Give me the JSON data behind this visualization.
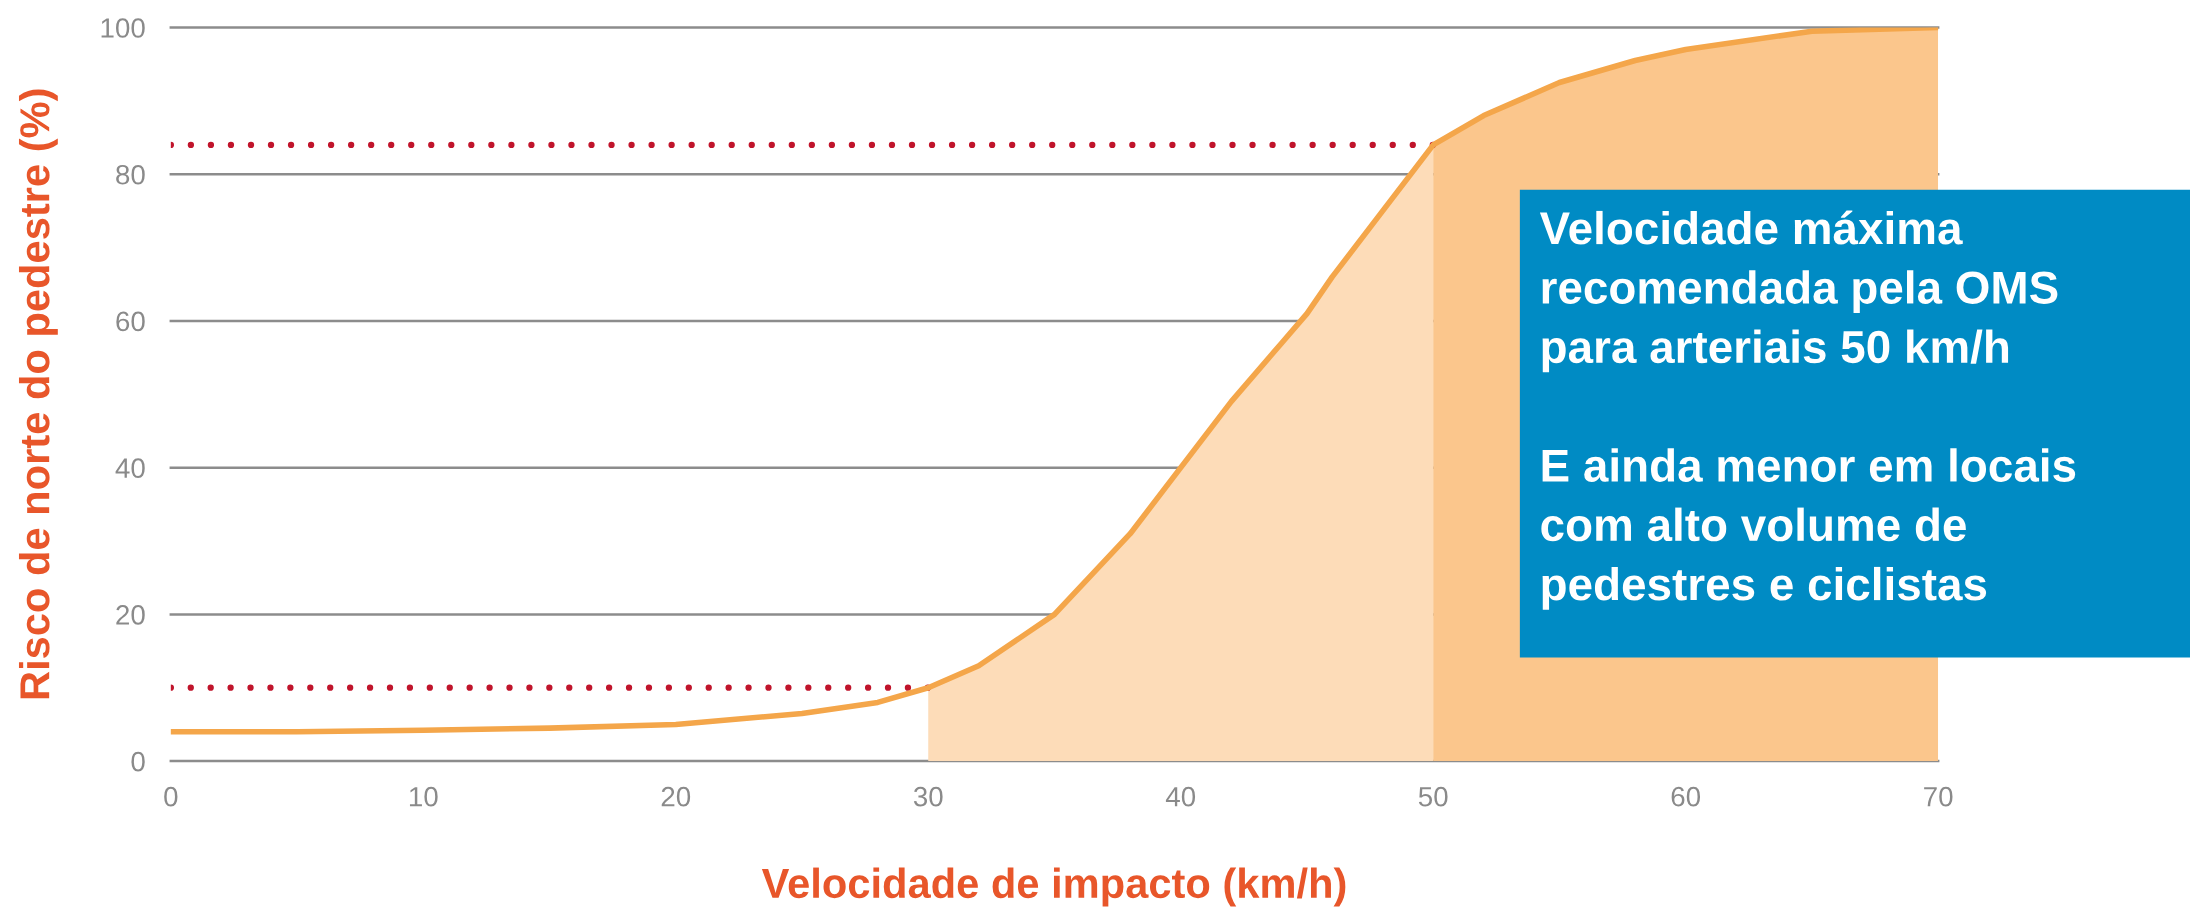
{
  "chart_data": {
    "type": "line",
    "xlabel": "Velocidade de impacto (km/h)",
    "ylabel": "Risco de norte do pedestre (%)",
    "xlim": [
      0,
      70
    ],
    "ylim": [
      0,
      100
    ],
    "xticks": [
      0,
      10,
      20,
      30,
      40,
      50,
      60,
      70
    ],
    "yticks": [
      0,
      20,
      40,
      60,
      80,
      100
    ],
    "grid": "y",
    "series": [
      {
        "type": "area",
        "color": "#fddcb8",
        "x": [
          30,
          32,
          35,
          38,
          40,
          42,
          44,
          45,
          46,
          48,
          50
        ],
        "values": [
          10,
          13,
          20,
          31,
          40,
          49,
          57,
          61,
          66,
          75,
          84
        ]
      },
      {
        "type": "area",
        "color": "#fbc68c",
        "x": [
          50,
          52,
          55,
          58,
          60,
          65,
          70
        ],
        "values": [
          84,
          88,
          92.5,
          95.5,
          97,
          99.5,
          100
        ]
      },
      {
        "line_style": "dotted",
        "color": "#c0142b",
        "x": [
          0,
          30
        ],
        "values": [
          10,
          10
        ]
      },
      {
        "line_style": "dotted",
        "color": "#c0142b",
        "x": [
          0,
          50
        ],
        "values": [
          84,
          84
        ]
      },
      {
        "line_style": "solid",
        "color": "#f4a64a",
        "x": [
          0,
          5,
          10,
          15,
          20,
          25,
          28,
          30,
          32,
          35,
          38,
          40,
          42,
          44,
          45,
          46,
          48,
          50,
          52,
          55,
          58,
          60,
          65,
          70
        ],
        "values": [
          4,
          4,
          4.2,
          4.5,
          5,
          6.5,
          8,
          10,
          13,
          20,
          31,
          40,
          49,
          57,
          61,
          66,
          75,
          84,
          88,
          92.5,
          95.5,
          97,
          99.5,
          100
        ]
      }
    ],
    "annotations": [
      "Velocidade máxima\nrecomendada pela OMS\npara arteriais 50 km/h\n\nE ainda menor em locais\ncom alto volume de\npedestres e ciclistas"
    ]
  }
}
